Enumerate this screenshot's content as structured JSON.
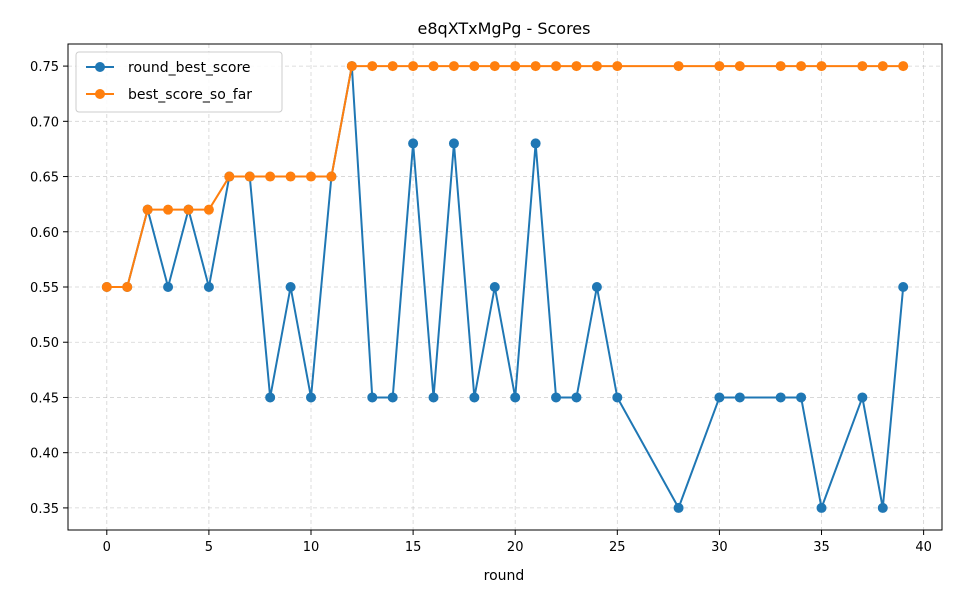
{
  "chart_data": {
    "type": "line",
    "title": "e8qXTxMgPg - Scores",
    "xlabel": "round",
    "ylabel": "",
    "xlim": [
      -1.9,
      40.9
    ],
    "ylim": [
      0.33,
      0.77
    ],
    "xticks": [
      0,
      5,
      10,
      15,
      20,
      25,
      30,
      35,
      40
    ],
    "yticks": [
      0.35,
      0.4,
      0.45,
      0.5,
      0.55,
      0.6,
      0.65,
      0.7,
      0.75
    ],
    "grid": true,
    "legend_position": "top-left",
    "series": [
      {
        "name": "round_best_score",
        "color": "#1f77b4",
        "x": [
          0,
          1,
          2,
          3,
          4,
          5,
          6,
          7,
          8,
          9,
          10,
          11,
          12,
          13,
          14,
          15,
          16,
          17,
          18,
          19,
          20,
          21,
          22,
          23,
          24,
          25,
          28,
          30,
          31,
          33,
          34,
          35,
          37,
          38,
          39
        ],
        "y": [
          0.55,
          0.55,
          0.62,
          0.55,
          0.62,
          0.55,
          0.65,
          0.65,
          0.45,
          0.55,
          0.45,
          0.65,
          0.75,
          0.45,
          0.45,
          0.68,
          0.45,
          0.68,
          0.45,
          0.55,
          0.45,
          0.68,
          0.45,
          0.45,
          0.55,
          0.45,
          0.35,
          0.45,
          0.45,
          0.45,
          0.45,
          0.35,
          0.45,
          0.35,
          0.55
        ]
      },
      {
        "name": "best_score_so_far",
        "color": "#ff7f0e",
        "x": [
          0,
          1,
          2,
          3,
          4,
          5,
          6,
          7,
          8,
          9,
          10,
          11,
          12,
          13,
          14,
          15,
          16,
          17,
          18,
          19,
          20,
          21,
          22,
          23,
          24,
          25,
          28,
          30,
          31,
          33,
          34,
          35,
          37,
          38,
          39
        ],
        "y": [
          0.55,
          0.55,
          0.62,
          0.62,
          0.62,
          0.62,
          0.65,
          0.65,
          0.65,
          0.65,
          0.65,
          0.65,
          0.75,
          0.75,
          0.75,
          0.75,
          0.75,
          0.75,
          0.75,
          0.75,
          0.75,
          0.75,
          0.75,
          0.75,
          0.75,
          0.75,
          0.75,
          0.75,
          0.75,
          0.75,
          0.75,
          0.75,
          0.75,
          0.75,
          0.75
        ]
      }
    ]
  }
}
